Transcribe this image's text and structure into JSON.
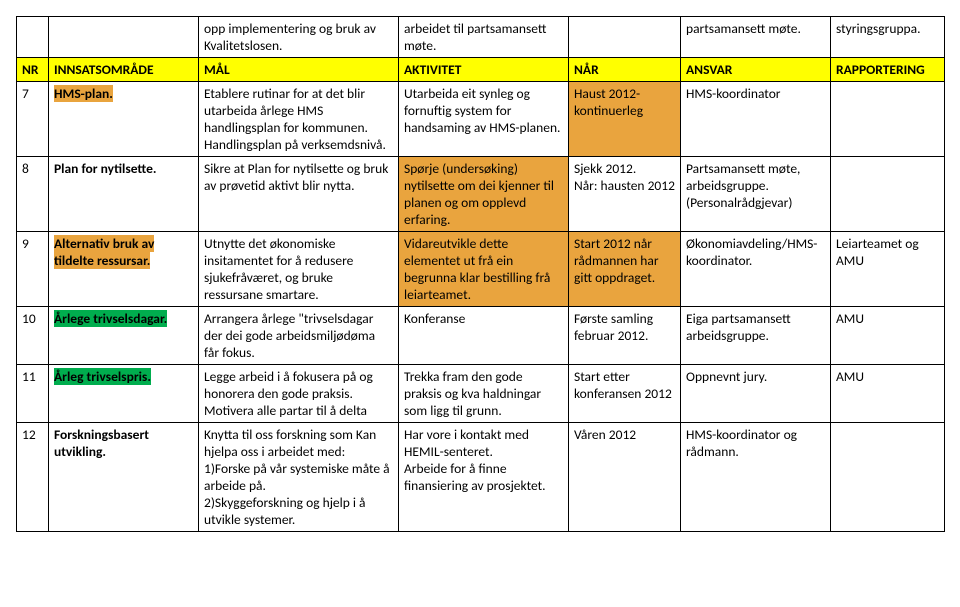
{
  "pre_row": {
    "goal": "opp implementering  og bruk av Kvalitetslosen.",
    "activity": "arbeidet til partsamansett møte.",
    "resp": "partsamansett møte.",
    "report": "styringsgruppa."
  },
  "header": {
    "nr": "NR",
    "area": "INNSATSOMRÅDE",
    "goal": "MÅL",
    "activity": "AKTIVITET",
    "when": "NÅR",
    "resp": "ANSVAR",
    "report": "RAPPORTERING"
  },
  "rows": [
    {
      "nr": "7",
      "area": "HMS-plan.",
      "area_style": "orange bold",
      "goal": "Etablere rutinar for at det blir utarbeida årlege HMS handlingsplan for kommunen. Handlingsplan på verksemdsnivå.",
      "activity": "Utarbeida eit synleg og fornuftig system for handsaming av HMS-planen.",
      "when": "Haust 2012- kontinuerleg",
      "when_style": "orange",
      "resp": "HMS-koordinator",
      "report": ""
    },
    {
      "nr": "8",
      "area": "Plan for nytilsette.",
      "area_style": "bold",
      "goal": "Sikre at Plan for nytilsette og bruk av prøvetid aktivt blir nytta.",
      "activity": "Spørje (undersøking) nytilsette om  dei kjenner til planen og om opplevd erfaring.",
      "activity_style": "orange",
      "when": "Sjekk 2012.\nNår: hausten 2012",
      "resp": "Partsamansett møte, arbeidsgruppe. (Personalrådgjevar)",
      "report": ""
    },
    {
      "nr": "9",
      "area": "Alternativ bruk av tildelte ressursar.",
      "area_style": "orange bold",
      "goal": "Utnytte det økonomiske insitamentet for å redusere sjukefråværet, og bruke ressursane smartare.",
      "activity": "Vidareutvikle dette elementet ut frå ein begrunna klar bestilling frå leiarteamet.",
      "activity_style": "orange",
      "when": "Start 2012 når rådmannen har gitt oppdraget.",
      "when_style": "orange",
      "resp": "Økonomiavdeling/HMS-koordinator.",
      "report": "Leiarteamet og AMU"
    },
    {
      "nr": "10",
      "area": "Årlege trivselsdagar.",
      "area_style": "green bold",
      "goal": "Arrangera årlege \"trivselsdagar der dei gode arbeidsmiljødøma får fokus.",
      "activity": "Konferanse",
      "when": "Første samling februar 2012.",
      "resp": "Eiga partsamansett arbeidsgruppe.",
      "report": "AMU"
    },
    {
      "nr": "11",
      "area": "Årleg trivselspris.",
      "area_style": "green bold",
      "goal": "Legge arbeid i å fokusera på og  honorera den gode praksis.\nMotivera alle partar til å delta",
      "activity": "Trekka fram den gode praksis og kva haldningar som ligg til grunn.",
      "when": "Start etter konferansen 2012",
      "resp": "Oppnevnt jury.",
      "report": "AMU"
    },
    {
      "nr": "12",
      "area": "Forskningsbasert utvikling.",
      "area_style": "bold",
      "goal": "Knytta til oss forskning som Kan hjelpa oss i arbeidet med:\n1)Forske på vår systemiske måte å arbeide på.\n2)Skyggeforskning og hjelp i å utvikle systemer.",
      "activity": "Har vore i kontakt med HEMIL-senteret.\nArbeide for å finne finansiering av prosjektet.",
      "when": "Våren 2012",
      "resp": "HMS-koordinator og rådmann.",
      "report": ""
    }
  ]
}
